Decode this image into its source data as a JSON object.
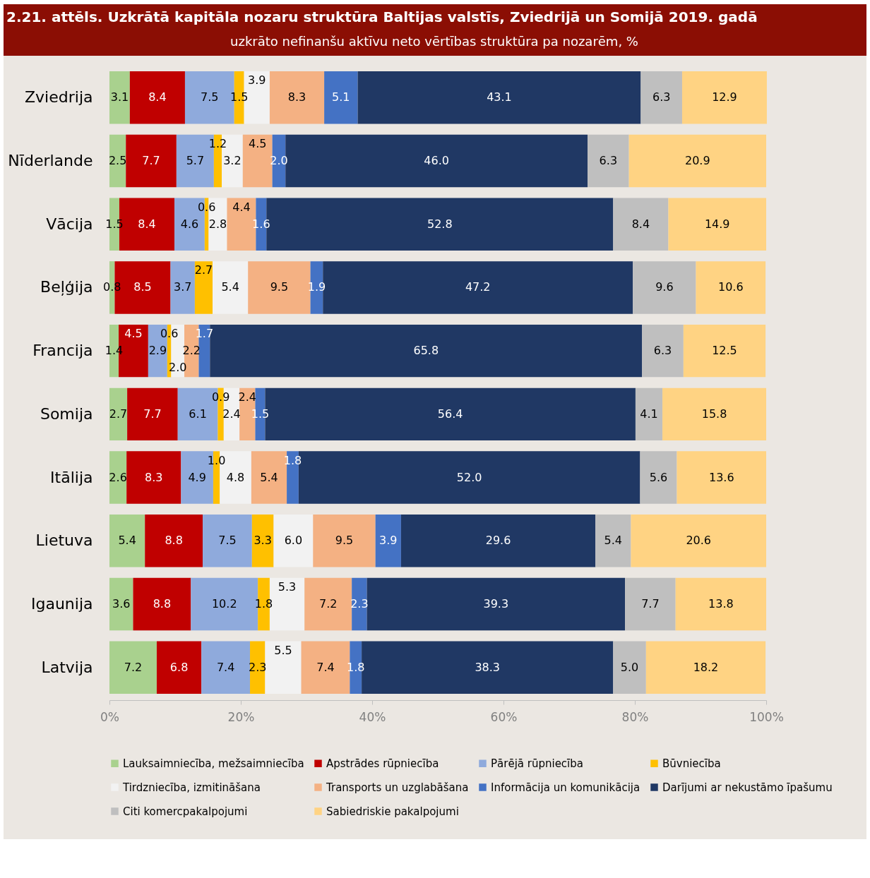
{
  "chart_data": {
    "type": "bar",
    "orientation": "horizontal",
    "stacked": true,
    "legend": "bottom",
    "grid": false,
    "title": "2.21. attēls. Uzkrātā kapitāla nozaru struktūra Baltijas valstīs, Zviedrijā un Somijā 2019. gadā",
    "subtitle": "uzkrāto nefinanšu aktīvu neto vērtības struktūra pa nozarēm, %",
    "categories": [
      "Zviedrija",
      "Nīderlande",
      "Vācija",
      "Beļģija",
      "Francija",
      "Somija",
      "Itālija",
      "Lietuva",
      "Igaunija",
      "Latvija"
    ],
    "xlim": [
      0,
      100
    ],
    "xticks": [
      {
        "value": 0,
        "label": "0%"
      },
      {
        "value": 20,
        "label": "20%"
      },
      {
        "value": 40,
        "label": "40%"
      },
      {
        "value": 60,
        "label": "60%"
      },
      {
        "value": 80,
        "label": "80%"
      },
      {
        "value": 100,
        "label": "100%"
      }
    ],
    "series": [
      {
        "name": "Lauksaimniecība, mežsaimniecība",
        "color": "#a9d18e",
        "values": [
          3.1,
          2.5,
          1.5,
          0.8,
          1.4,
          2.7,
          2.6,
          5.4,
          3.6,
          7.2
        ],
        "value_labels": [
          "3.1",
          "2.5",
          "1.5",
          "0.8",
          "1.4",
          "2.7",
          "2.6",
          "5.4",
          "3.6",
          "7.2"
        ]
      },
      {
        "name": "Apstrādes rūpniecība",
        "color": "#c00000",
        "values": [
          8.4,
          7.7,
          8.4,
          8.5,
          4.5,
          7.7,
          8.3,
          8.8,
          8.8,
          6.8
        ],
        "value_labels": [
          "8.4",
          "7.7",
          "8.4",
          "8.5",
          "4.5",
          "7.7",
          "8.3",
          "8.8",
          "8.8",
          "6.8"
        ]
      },
      {
        "name": "Pārējā rūpniecība",
        "color": "#8faadc",
        "values": [
          7.5,
          5.7,
          4.6,
          3.7,
          2.9,
          6.1,
          4.9,
          7.5,
          10.2,
          7.4
        ],
        "value_labels": [
          "7.5",
          "5.7",
          "4.6",
          "3.7",
          "2.9",
          "6.1",
          "4.9",
          "7.5",
          "10.2",
          "7.4"
        ]
      },
      {
        "name": "Būvniecība",
        "color": "#ffc000",
        "values": [
          1.5,
          1.2,
          0.6,
          2.7,
          0.6,
          0.9,
          1.0,
          3.3,
          1.8,
          2.3
        ],
        "value_labels": [
          "1.5",
          "1.2",
          "0.6",
          "2.7",
          "0.6",
          "0.9",
          "1.0",
          "3.3",
          "1.8",
          "2.3"
        ]
      },
      {
        "name": "Tirdzniecība, izmitināšana",
        "color": "#f2f2f2",
        "values": [
          3.9,
          3.2,
          2.8,
          5.4,
          2.0,
          2.4,
          4.8,
          6.0,
          5.3,
          5.5
        ],
        "value_labels": [
          "3.9",
          "3.2",
          "2.8",
          "5.4",
          "2.0",
          "2.4",
          "4.8",
          "6.0",
          "5.3",
          "5.5"
        ]
      },
      {
        "name": "Transports un uzglabāšana",
        "color": "#f4b183",
        "values": [
          8.3,
          4.5,
          4.4,
          9.5,
          2.2,
          2.4,
          5.4,
          9.5,
          7.2,
          7.4
        ],
        "value_labels": [
          "8.3",
          "4.5",
          "4.4",
          "9.5",
          "2.2",
          "2.4",
          "5.4",
          "9.5",
          "7.2",
          "7.4"
        ]
      },
      {
        "name": "Informācija un komunikācija",
        "color": "#4472c4",
        "values": [
          5.1,
          2.0,
          1.6,
          1.9,
          1.7,
          1.5,
          1.8,
          3.9,
          2.3,
          1.8
        ],
        "value_labels": [
          "5.1",
          "2.0",
          "1.6",
          "1.9",
          "1.7",
          "1.5",
          "1.8",
          "3.9",
          "2.3",
          "1.8"
        ]
      },
      {
        "name": "Darījumi ar nekustāmo īpašumu",
        "color": "#203864",
        "values": [
          43.1,
          46.0,
          52.8,
          47.2,
          65.8,
          56.4,
          52.0,
          29.6,
          39.3,
          38.3
        ],
        "value_labels": [
          "43.1",
          "46.0",
          "52.8",
          "47.2",
          "65.8",
          "56.4",
          "52.0",
          "29.6",
          "39.3",
          "38.3"
        ]
      },
      {
        "name": "Citi komercpakalpojumi",
        "color": "#bfbfbf",
        "values": [
          6.3,
          6.3,
          8.4,
          9.6,
          6.3,
          4.1,
          5.6,
          5.4,
          7.7,
          5.0
        ],
        "value_labels": [
          "6.3",
          "6.3",
          "8.4",
          "9.6",
          "6.3",
          "4.1",
          "5.6",
          "5.4",
          "7.7",
          "5.0"
        ]
      },
      {
        "name": "Sabiedriskie pakalpojumi",
        "color": "#ffd383",
        "values": [
          12.9,
          20.9,
          14.9,
          10.6,
          12.5,
          15.8,
          13.6,
          20.6,
          13.8,
          18.2
        ],
        "value_labels": [
          "12.9",
          "20.9",
          "14.9",
          "10.6",
          "12.5",
          "15.8",
          "13.6",
          "20.6",
          "13.8",
          "18.2"
        ]
      }
    ]
  }
}
